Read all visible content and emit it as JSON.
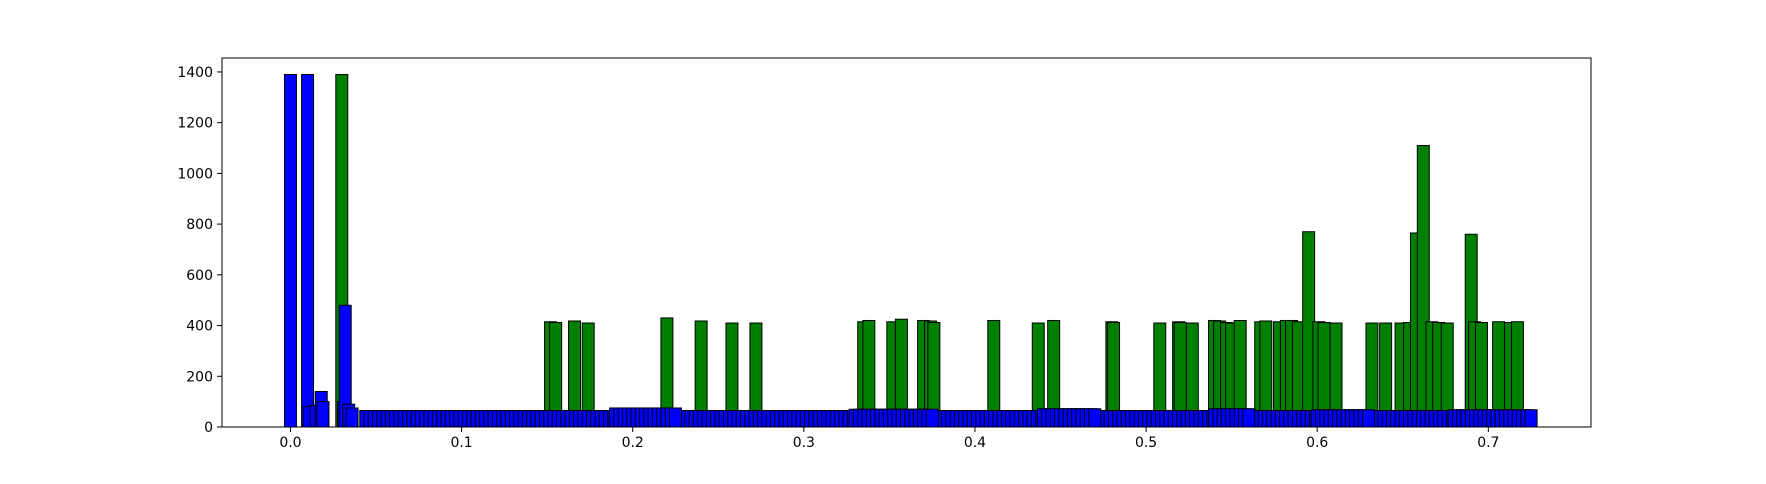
{
  "chart_data": {
    "type": "bar",
    "title": "",
    "xlabel": "",
    "ylabel": "",
    "xlim": [
      -0.04,
      0.76
    ],
    "ylim": [
      0,
      1455
    ],
    "x_ticks": [
      0.0,
      0.1,
      0.2,
      0.3,
      0.4,
      0.5,
      0.6,
      0.7
    ],
    "x_tick_labels": [
      "0.0",
      "0.1",
      "0.2",
      "0.3",
      "0.4",
      "0.5",
      "0.6",
      "0.7"
    ],
    "y_ticks": [
      0,
      200,
      400,
      600,
      800,
      1000,
      1200,
      1400
    ],
    "y_tick_labels": [
      "0",
      "200",
      "400",
      "600",
      "800",
      "1000",
      "1200",
      "1400"
    ],
    "grid": false,
    "legend": "none",
    "bar_width": 0.007,
    "edge_color": "#000000",
    "series": [
      {
        "color": "#008000",
        "bars": [
          {
            "x": 0.03,
            "y": 1390
          },
          {
            "x": 0.152,
            "y": 415
          },
          {
            "x": 0.155,
            "y": 412
          },
          {
            "x": 0.166,
            "y": 418
          },
          {
            "x": 0.174,
            "y": 410
          },
          {
            "x": 0.22,
            "y": 430
          },
          {
            "x": 0.24,
            "y": 418
          },
          {
            "x": 0.258,
            "y": 410
          },
          {
            "x": 0.272,
            "y": 410
          },
          {
            "x": 0.335,
            "y": 415
          },
          {
            "x": 0.338,
            "y": 420
          },
          {
            "x": 0.352,
            "y": 415
          },
          {
            "x": 0.357,
            "y": 425
          },
          {
            "x": 0.37,
            "y": 420
          },
          {
            "x": 0.374,
            "y": 418
          },
          {
            "x": 0.376,
            "y": 412
          },
          {
            "x": 0.411,
            "y": 420
          },
          {
            "x": 0.437,
            "y": 410
          },
          {
            "x": 0.446,
            "y": 420
          },
          {
            "x": 0.48,
            "y": 415
          },
          {
            "x": 0.481,
            "y": 412
          },
          {
            "x": 0.508,
            "y": 410
          },
          {
            "x": 0.519,
            "y": 415
          },
          {
            "x": 0.52,
            "y": 412
          },
          {
            "x": 0.527,
            "y": 410
          },
          {
            "x": 0.54,
            "y": 420
          },
          {
            "x": 0.543,
            "y": 418
          },
          {
            "x": 0.547,
            "y": 412
          },
          {
            "x": 0.55,
            "y": 410
          },
          {
            "x": 0.555,
            "y": 420
          },
          {
            "x": 0.567,
            "y": 415
          },
          {
            "x": 0.57,
            "y": 418
          },
          {
            "x": 0.578,
            "y": 415
          },
          {
            "x": 0.582,
            "y": 420
          },
          {
            "x": 0.585,
            "y": 420
          },
          {
            "x": 0.589,
            "y": 415
          },
          {
            "x": 0.595,
            "y": 770
          },
          {
            "x": 0.601,
            "y": 415
          },
          {
            "x": 0.604,
            "y": 412
          },
          {
            "x": 0.611,
            "y": 410
          },
          {
            "x": 0.632,
            "y": 410
          },
          {
            "x": 0.64,
            "y": 410
          },
          {
            "x": 0.649,
            "y": 410
          },
          {
            "x": 0.654,
            "y": 412
          },
          {
            "x": 0.658,
            "y": 765
          },
          {
            "x": 0.662,
            "y": 1110
          },
          {
            "x": 0.667,
            "y": 415
          },
          {
            "x": 0.671,
            "y": 412
          },
          {
            "x": 0.676,
            "y": 410
          },
          {
            "x": 0.69,
            "y": 760
          },
          {
            "x": 0.692,
            "y": 415
          },
          {
            "x": 0.696,
            "y": 412
          },
          {
            "x": 0.706,
            "y": 415
          },
          {
            "x": 0.713,
            "y": 412
          },
          {
            "x": 0.717,
            "y": 415
          }
        ]
      },
      {
        "color": "#0000ff",
        "bars": [
          {
            "x": 0.0,
            "y": 1390
          },
          {
            "x": 0.01,
            "y": 1390
          },
          {
            "x": 0.011,
            "y": 80
          },
          {
            "x": 0.015,
            "y": 85
          },
          {
            "x": 0.018,
            "y": 140
          },
          {
            "x": 0.019,
            "y": 100
          },
          {
            "x": 0.031,
            "y": 100
          },
          {
            "x": 0.032,
            "y": 480
          },
          {
            "x": 0.034,
            "y": 90
          },
          {
            "x": 0.036,
            "y": 75
          }
        ],
        "bands": [
          {
            "x_start": 0.044,
            "x_end": 0.725,
            "step": 0.0025,
            "y": 65
          },
          {
            "x_start": 0.19,
            "x_end": 0.225,
            "step": 0.0025,
            "y": 75
          },
          {
            "x_start": 0.33,
            "x_end": 0.375,
            "step": 0.0025,
            "y": 70
          },
          {
            "x_start": 0.44,
            "x_end": 0.47,
            "step": 0.0025,
            "y": 72
          },
          {
            "x_start": 0.54,
            "x_end": 0.56,
            "step": 0.0025,
            "y": 72
          },
          {
            "x_start": 0.6,
            "x_end": 0.63,
            "step": 0.0025,
            "y": 68
          },
          {
            "x_start": 0.68,
            "x_end": 0.725,
            "step": 0.0025,
            "y": 68
          }
        ]
      }
    ]
  }
}
